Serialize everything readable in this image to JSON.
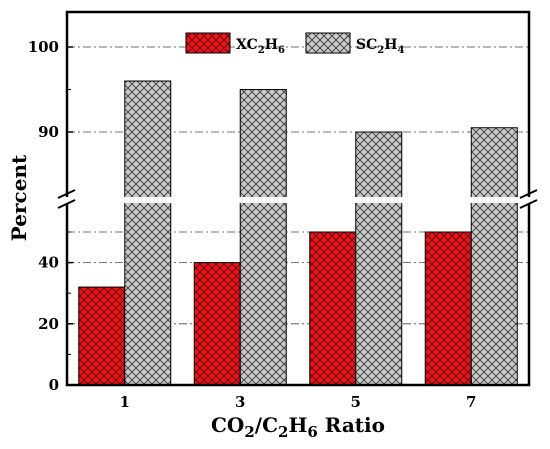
{
  "chart_data": {
    "type": "bar",
    "xlabel": "CO2/C2H6 Ratio",
    "ylabel": "Percent",
    "categories": [
      "1",
      "3",
      "5",
      "7"
    ],
    "series": [
      {
        "name": "XC2H6",
        "values": [
          32,
          40,
          50,
          50
        ],
        "color": "#e8141b",
        "pattern": "crosshatch"
      },
      {
        "name": "SC2H4",
        "values": [
          96,
          95,
          90,
          90.5
        ],
        "color": "#c8c8c8",
        "pattern": "crosshatch"
      }
    ],
    "y_axis": {
      "broken": true,
      "lower_range": [
        0,
        50
      ],
      "upper_range": [
        86,
        104
      ],
      "lower_ticks": [
        "0",
        "20",
        "40"
      ],
      "upper_ticks": [
        "90",
        "100"
      ]
    },
    "grid": "horizontal dash-dot",
    "legend_position": "top"
  }
}
